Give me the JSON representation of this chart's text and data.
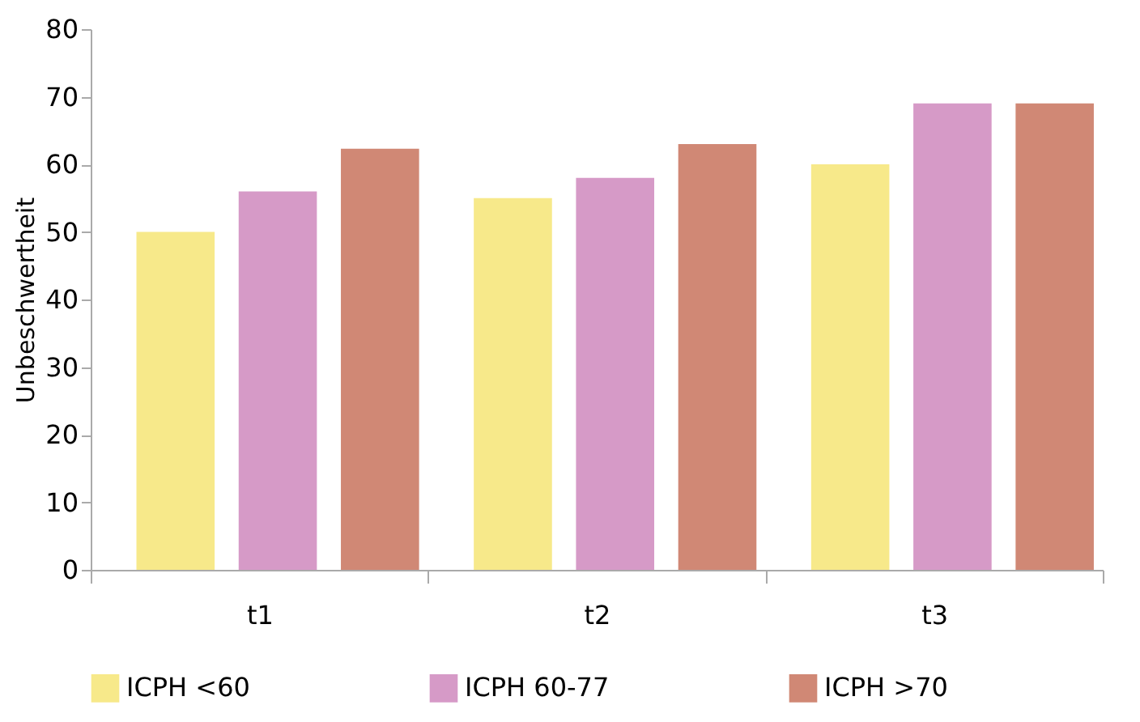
{
  "chart_data": {
    "type": "bar",
    "ylabel": "Unbeschwertheit",
    "categories": [
      "t1",
      "t2",
      "t3"
    ],
    "series": [
      {
        "name": "ICPH <60",
        "color": "#f7e98a",
        "values": [
          50,
          55,
          60
        ]
      },
      {
        "name": "ICPH 60-77",
        "color": "#d69ac7",
        "values": [
          56,
          58,
          69
        ]
      },
      {
        "name": "ICPH >70",
        "color": "#d08875",
        "values": [
          62.3,
          63,
          69
        ]
      }
    ],
    "ylim": [
      0,
      80
    ],
    "yticks": [
      0,
      10,
      20,
      30,
      40,
      50,
      60,
      70,
      80
    ],
    "grid": false,
    "legend": "bottom"
  }
}
